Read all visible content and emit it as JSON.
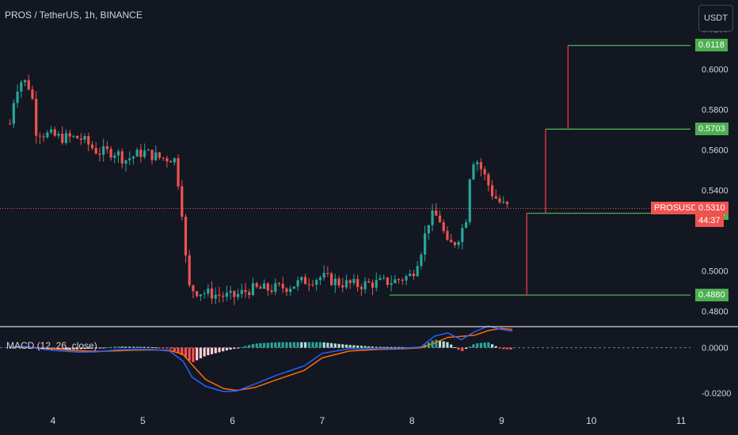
{
  "header": {
    "title": "PROS / TetherUS, 1h, BINANCE",
    "currency_button": "USDT"
  },
  "macd": {
    "title": "MACD (12, 26, close)"
  },
  "symbol_label": {
    "name": "PROSUSDT",
    "price": "0.5310",
    "countdown": "44:37"
  },
  "colors": {
    "up": "#26a69a",
    "down": "#ef5350",
    "level_line": "#4caf50",
    "target_line": "#f23645",
    "macd_line": "#2962ff",
    "signal_line": "#ff6d00"
  },
  "chart_data": [
    {
      "type": "candlestick",
      "title": "PROS / TetherUS, 1h, BINANCE",
      "x_ticks": [
        "4",
        "5",
        "6",
        "7",
        "8",
        "9",
        "10",
        "11"
      ],
      "y_ticks": [
        "0.6200",
        "0.6000",
        "0.5800",
        "0.5600",
        "0.5400",
        "0.5000",
        "0.4800"
      ],
      "ylim": [
        0.4755,
        0.6265
      ],
      "current_price": 0.531,
      "price_levels": [
        {
          "value": 0.6118,
          "label": "0.6118"
        },
        {
          "value": 0.5703,
          "label": "0.5703"
        },
        {
          "value": 0.5286,
          "label": "0.5286"
        },
        {
          "value": 0.488,
          "label": "0.4880"
        }
      ],
      "target_segments": [
        {
          "x": 9.74,
          "from": 0.5703,
          "to": 0.6118
        },
        {
          "x": 9.49,
          "from": 0.5286,
          "to": 0.5703
        },
        {
          "x": 9.28,
          "from": 0.488,
          "to": 0.5286
        }
      ],
      "candles_path": [
        [
          3.52,
          0.573
        ],
        [
          3.58,
          0.59
        ],
        [
          3.66,
          0.595
        ],
        [
          3.76,
          0.59
        ],
        [
          3.8,
          0.57
        ],
        [
          3.9,
          0.568
        ],
        [
          4.0,
          0.567
        ],
        [
          4.1,
          0.566
        ],
        [
          4.3,
          0.566
        ],
        [
          4.5,
          0.559
        ],
        [
          4.7,
          0.559
        ],
        [
          4.8,
          0.555
        ],
        [
          4.9,
          0.557
        ],
        [
          5.0,
          0.559
        ],
        [
          5.2,
          0.556
        ],
        [
          5.35,
          0.556
        ],
        [
          5.4,
          0.543
        ],
        [
          5.45,
          0.525
        ],
        [
          5.5,
          0.492
        ],
        [
          5.6,
          0.49
        ],
        [
          5.7,
          0.489
        ],
        [
          5.85,
          0.488
        ],
        [
          6.0,
          0.487
        ],
        [
          6.1,
          0.489
        ],
        [
          6.2,
          0.491
        ],
        [
          6.4,
          0.491
        ],
        [
          6.6,
          0.492
        ],
        [
          6.8,
          0.495
        ],
        [
          7.0,
          0.497
        ],
        [
          7.2,
          0.494
        ],
        [
          7.4,
          0.493
        ],
        [
          7.6,
          0.494
        ],
        [
          7.8,
          0.495
        ],
        [
          8.0,
          0.498
        ],
        [
          8.1,
          0.51
        ],
        [
          8.2,
          0.527
        ],
        [
          8.3,
          0.527
        ],
        [
          8.4,
          0.512
        ],
        [
          8.5,
          0.515
        ],
        [
          8.6,
          0.525
        ],
        [
          8.65,
          0.55
        ],
        [
          8.7,
          0.557
        ],
        [
          8.8,
          0.548
        ],
        [
          8.9,
          0.538
        ],
        [
          9.0,
          0.533
        ],
        [
          9.1,
          0.531
        ]
      ]
    },
    {
      "type": "macd",
      "title": "MACD (12, 26, close)",
      "y_ticks": [
        "0.0000",
        "-0.0200"
      ],
      "ylim": [
        -0.0245,
        0.0075
      ],
      "series": [
        {
          "x": [
            3.52,
            3.7,
            3.9,
            4.1,
            4.3,
            4.5,
            4.7,
            4.9,
            5.1,
            5.3,
            5.45,
            5.55,
            5.7,
            5.9,
            6.05,
            6.25,
            6.5,
            6.8,
            7.0,
            7.3,
            7.6,
            7.9,
            8.1,
            8.25,
            8.4,
            8.55,
            8.7,
            8.85,
            9.0,
            9.12
          ],
          "values": [
            0.0002,
            0.0005,
            -0.0008,
            -0.0015,
            -0.002,
            -0.0018,
            -0.001,
            -0.0008,
            -0.0008,
            -0.0015,
            -0.006,
            -0.013,
            -0.017,
            -0.0193,
            -0.019,
            -0.016,
            -0.012,
            -0.008,
            -0.0025,
            -0.0005,
            -0.0005,
            -0.0003,
            0.0003,
            0.005,
            0.0065,
            0.0035,
            0.007,
            0.0095,
            0.008,
            0.0073
          ]
        },
        {
          "x": [
            3.52,
            3.7,
            3.9,
            4.1,
            4.3,
            4.5,
            4.7,
            4.9,
            5.1,
            5.3,
            5.45,
            5.55,
            5.7,
            5.9,
            6.05,
            6.25,
            6.5,
            6.8,
            7.0,
            7.3,
            7.6,
            7.9,
            8.1,
            8.25,
            8.4,
            8.55,
            8.7,
            8.85,
            9.0,
            9.12
          ],
          "values": [
            0.0,
            0.0002,
            -0.0002,
            -0.0008,
            -0.0014,
            -0.0016,
            -0.0014,
            -0.0011,
            -0.001,
            -0.0012,
            -0.003,
            -0.0075,
            -0.014,
            -0.018,
            -0.0188,
            -0.0175,
            -0.014,
            -0.01,
            -0.0045,
            -0.0015,
            -0.0008,
            -0.0005,
            0.0,
            0.002,
            0.0045,
            0.005,
            0.0055,
            0.0075,
            0.0085,
            0.008
          ]
        }
      ]
    }
  ]
}
